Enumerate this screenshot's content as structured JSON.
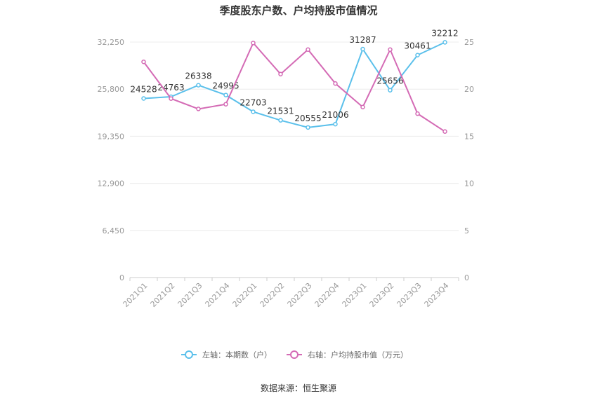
{
  "chart_data": {
    "type": "line",
    "title": "季度股东户数、户均持股市值情况",
    "categories": [
      "2021Q1",
      "2021Q2",
      "2021Q3",
      "2021Q4",
      "2022Q1",
      "2022Q2",
      "2022Q3",
      "2022Q4",
      "2023Q1",
      "2023Q2",
      "2023Q3",
      "2023Q4"
    ],
    "left_axis": {
      "ylim": [
        0,
        32250
      ],
      "ticks": [
        "0",
        "6,450",
        "12,900",
        "19,350",
        "25,800",
        "32,250"
      ],
      "tick_values": [
        0,
        6450,
        12900,
        19350,
        25800,
        32250
      ]
    },
    "right_axis": {
      "ylim": [
        0,
        25
      ],
      "ticks": [
        "0",
        "5",
        "10",
        "15",
        "20",
        "25"
      ],
      "tick_values": [
        0,
        5,
        10,
        15,
        20,
        25
      ]
    },
    "series": [
      {
        "name": "左轴：本期数（户）",
        "axis": "left",
        "color": "#5bc0eb",
        "values": [
          24528,
          24763,
          26338,
          24995,
          22703,
          21531,
          20555,
          21006,
          31287,
          25656,
          30461,
          32212
        ],
        "labels": [
          "24528",
          "24763",
          "26338",
          "24995",
          "22703",
          "21531",
          "20555",
          "21006",
          "31287",
          "25656",
          "30461",
          "32212"
        ]
      },
      {
        "name": "右轴：户均持股市值（万元）",
        "axis": "right",
        "color": "#d46bb5",
        "values": [
          22.9,
          19.0,
          17.9,
          18.4,
          24.9,
          21.6,
          24.2,
          20.6,
          18.1,
          24.2,
          17.4,
          15.5
        ]
      }
    ],
    "legend_position": "bottom",
    "grid": true,
    "source": "数据来源：恒生聚源"
  }
}
